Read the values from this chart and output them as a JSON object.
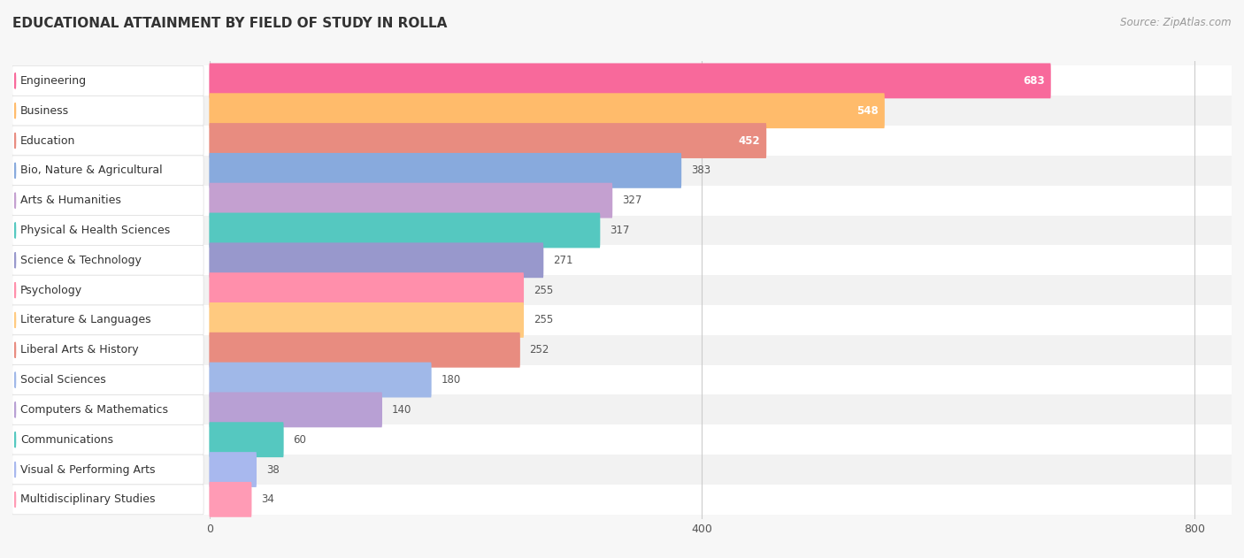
{
  "title": "EDUCATIONAL ATTAINMENT BY FIELD OF STUDY IN ROLLA",
  "source": "Source: ZipAtlas.com",
  "categories": [
    "Engineering",
    "Business",
    "Education",
    "Bio, Nature & Agricultural",
    "Arts & Humanities",
    "Physical & Health Sciences",
    "Science & Technology",
    "Psychology",
    "Literature & Languages",
    "Liberal Arts & History",
    "Social Sciences",
    "Computers & Mathematics",
    "Communications",
    "Visual & Performing Arts",
    "Multidisciplinary Studies"
  ],
  "values": [
    683,
    548,
    452,
    383,
    327,
    317,
    271,
    255,
    255,
    252,
    180,
    140,
    60,
    38,
    34
  ],
  "colors": [
    "#F8699B",
    "#FFBB6B",
    "#E88C80",
    "#88AADD",
    "#C4A0D0",
    "#55C8C0",
    "#9898CC",
    "#FF8FAB",
    "#FFCA80",
    "#E88C80",
    "#A0B8E8",
    "#B8A0D4",
    "#55C8C0",
    "#A8B8EE",
    "#FF9BB5"
  ],
  "row_bg_color": "#f0f0f0",
  "bar_bg_color": "#e8e8e8",
  "white_row_color": "#ffffff",
  "xlim": [
    -160,
    830
  ],
  "xticks": [
    0,
    400,
    800
  ],
  "background_color": "#f7f7f7",
  "title_fontsize": 11,
  "source_fontsize": 8.5,
  "label_fontsize": 9,
  "value_fontsize": 8.5
}
